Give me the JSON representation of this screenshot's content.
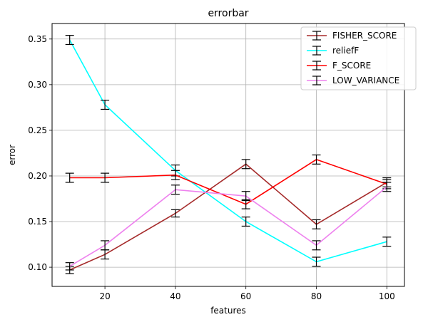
{
  "chart_data": {
    "type": "line",
    "title": "errorbar",
    "xlabel": "features",
    "ylabel": "error",
    "x": [
      10,
      20,
      40,
      60,
      80,
      100
    ],
    "xlim": [
      5,
      105
    ],
    "ylim": [
      0.079,
      0.367
    ],
    "xticks": [
      20,
      40,
      60,
      80,
      100
    ],
    "yticks": [
      0.1,
      0.15,
      0.2,
      0.25,
      0.3,
      0.35
    ],
    "xtick_labels": [
      "20",
      "40",
      "60",
      "80",
      "100"
    ],
    "ytick_labels": [
      "0.10",
      "0.15",
      "0.20",
      "0.25",
      "0.30",
      "0.35"
    ],
    "grid": true,
    "legend_position": "top-right",
    "errorbar_color": "#000000",
    "series": [
      {
        "name": "FISHER_SCORE",
        "color": "#a52a2a",
        "values": [
          0.097,
          0.114,
          0.159,
          0.213,
          0.147,
          0.193
        ],
        "errors": [
          0.004,
          0.005,
          0.004,
          0.005,
          0.005,
          0.005
        ]
      },
      {
        "name": "reliefF",
        "color": "#00ffff",
        "values": [
          0.349,
          0.278,
          0.206,
          0.15,
          0.106,
          0.128
        ],
        "errors": [
          0.005,
          0.005,
          0.006,
          0.005,
          0.005,
          0.005
        ]
      },
      {
        "name": "F_SCORE",
        "color": "#ff0000",
        "values": [
          0.198,
          0.198,
          0.201,
          0.169,
          0.218,
          0.191
        ],
        "errors": [
          0.005,
          0.005,
          0.005,
          0.005,
          0.005,
          0.005
        ]
      },
      {
        "name": "LOW_VARIANCE",
        "color": "#ee82ee",
        "values": [
          0.101,
          0.124,
          0.185,
          0.178,
          0.124,
          0.188
        ],
        "errors": [
          0.004,
          0.005,
          0.005,
          0.005,
          0.005,
          0.005
        ]
      }
    ]
  }
}
